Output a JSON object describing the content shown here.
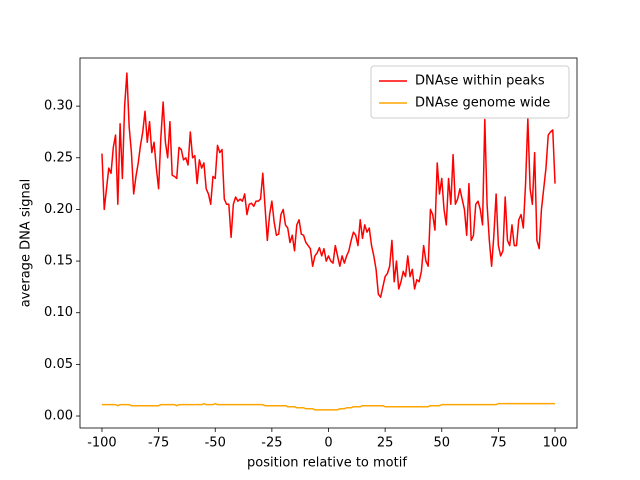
{
  "chart_data": {
    "type": "line",
    "xlabel": "position relative to motif",
    "ylabel": "average DNA signal",
    "legend": "upper right",
    "grid": false,
    "xlim": [
      -109.7,
      109.7
    ],
    "ylim": [
      -0.0116,
      0.3466
    ],
    "xticks": [
      -100,
      -75,
      -50,
      -25,
      0,
      25,
      50,
      75,
      100
    ],
    "yticks": [
      {
        "value": 0,
        "label": "0.00"
      },
      {
        "value": 0.05,
        "label": "0.05"
      },
      {
        "value": 0.1,
        "label": "0.10"
      },
      {
        "value": 0.15,
        "label": "0.15"
      },
      {
        "value": 0.2,
        "label": "0.20"
      },
      {
        "value": 0.25,
        "label": "0.25"
      },
      {
        "value": 0.3,
        "label": "0.30"
      }
    ],
    "x": [
      -100,
      -99,
      -98,
      -97,
      -96,
      -95,
      -94,
      -93,
      -92,
      -91,
      -90,
      -89,
      -88,
      -87,
      -86,
      -85,
      -84,
      -83,
      -82,
      -81,
      -80,
      -79,
      -78,
      -77,
      -76,
      -75,
      -74,
      -73,
      -72,
      -71,
      -70,
      -69,
      -68,
      -67,
      -66,
      -65,
      -64,
      -63,
      -62,
      -61,
      -60,
      -59,
      -58,
      -57,
      -56,
      -55,
      -54,
      -53,
      -52,
      -51,
      -50,
      -49,
      -48,
      -47,
      -46,
      -45,
      -44,
      -43,
      -42,
      -41,
      -40,
      -39,
      -38,
      -37,
      -36,
      -35,
      -34,
      -33,
      -32,
      -31,
      -30,
      -29,
      -28,
      -27,
      -26,
      -25,
      -24,
      -23,
      -22,
      -21,
      -20,
      -19,
      -18,
      -17,
      -16,
      -15,
      -14,
      -13,
      -12,
      -11,
      -10,
      -9,
      -8,
      -7,
      -6,
      -5,
      -4,
      -3,
      -2,
      -1,
      0,
      1,
      2,
      3,
      4,
      5,
      6,
      7,
      8,
      9,
      10,
      11,
      12,
      13,
      14,
      15,
      16,
      17,
      18,
      19,
      20,
      21,
      22,
      23,
      24,
      25,
      26,
      27,
      28,
      29,
      30,
      31,
      32,
      33,
      34,
      35,
      36,
      37,
      38,
      39,
      40,
      41,
      42,
      43,
      44,
      45,
      46,
      47,
      48,
      49,
      50,
      51,
      52,
      53,
      54,
      55,
      56,
      57,
      58,
      59,
      60,
      61,
      62,
      63,
      64,
      65,
      66,
      67,
      68,
      69,
      70,
      71,
      72,
      73,
      74,
      75,
      76,
      77,
      78,
      79,
      80,
      81,
      82,
      83,
      84,
      85,
      86,
      87,
      88,
      89,
      90,
      91,
      92,
      93,
      94,
      95,
      96,
      97,
      98,
      99,
      100
    ],
    "series": [
      {
        "name": "DNAse within peaks",
        "color": "#ff0000",
        "values": [
          0.254,
          0.2,
          0.22,
          0.24,
          0.235,
          0.26,
          0.272,
          0.205,
          0.283,
          0.23,
          0.3,
          0.332,
          0.28,
          0.255,
          0.215,
          0.232,
          0.245,
          0.262,
          0.275,
          0.295,
          0.265,
          0.285,
          0.255,
          0.265,
          0.24,
          0.22,
          0.27,
          0.304,
          0.265,
          0.25,
          0.285,
          0.233,
          0.232,
          0.23,
          0.26,
          0.258,
          0.248,
          0.25,
          0.243,
          0.275,
          0.25,
          0.252,
          0.225,
          0.248,
          0.24,
          0.245,
          0.22,
          0.215,
          0.205,
          0.232,
          0.23,
          0.262,
          0.255,
          0.258,
          0.21,
          0.205,
          0.205,
          0.173,
          0.205,
          0.212,
          0.208,
          0.21,
          0.208,
          0.215,
          0.195,
          0.205,
          0.206,
          0.203,
          0.208,
          0.208,
          0.21,
          0.235,
          0.202,
          0.17,
          0.195,
          0.208,
          0.188,
          0.175,
          0.176,
          0.195,
          0.2,
          0.185,
          0.182,
          0.168,
          0.175,
          0.16,
          0.185,
          0.19,
          0.176,
          0.175,
          0.168,
          0.165,
          0.162,
          0.145,
          0.155,
          0.158,
          0.163,
          0.155,
          0.162,
          0.15,
          0.155,
          0.15,
          0.148,
          0.165,
          0.155,
          0.145,
          0.155,
          0.148,
          0.155,
          0.16,
          0.17,
          0.178,
          0.175,
          0.165,
          0.19,
          0.172,
          0.185,
          0.178,
          0.182,
          0.165,
          0.155,
          0.142,
          0.118,
          0.115,
          0.125,
          0.135,
          0.138,
          0.145,
          0.17,
          0.13,
          0.15,
          0.123,
          0.13,
          0.14,
          0.135,
          0.155,
          0.135,
          0.142,
          0.123,
          0.132,
          0.13,
          0.14,
          0.165,
          0.15,
          0.145,
          0.2,
          0.195,
          0.18,
          0.245,
          0.215,
          0.23,
          0.2,
          0.185,
          0.23,
          0.205,
          0.253,
          0.205,
          0.21,
          0.22,
          0.21,
          0.2,
          0.175,
          0.225,
          0.17,
          0.175,
          0.205,
          0.208,
          0.2,
          0.185,
          0.287,
          0.205,
          0.17,
          0.145,
          0.175,
          0.215,
          0.165,
          0.155,
          0.16,
          0.212,
          0.17,
          0.165,
          0.185,
          0.165,
          0.165,
          0.19,
          0.195,
          0.182,
          0.225,
          0.288,
          0.22,
          0.205,
          0.255,
          0.17,
          0.162,
          0.2,
          0.22,
          0.24,
          0.272,
          0.275,
          0.277,
          0.225
        ]
      },
      {
        "name": "DNAse genome wide",
        "color": "#ffa500",
        "values": [
          0.011,
          0.011,
          0.011,
          0.011,
          0.011,
          0.011,
          0.011,
          0.01,
          0.011,
          0.011,
          0.011,
          0.011,
          0.011,
          0.01,
          0.01,
          0.01,
          0.01,
          0.01,
          0.01,
          0.01,
          0.01,
          0.01,
          0.01,
          0.01,
          0.01,
          0.01,
          0.011,
          0.011,
          0.011,
          0.011,
          0.011,
          0.011,
          0.011,
          0.01,
          0.011,
          0.011,
          0.011,
          0.011,
          0.011,
          0.011,
          0.011,
          0.011,
          0.011,
          0.011,
          0.011,
          0.012,
          0.011,
          0.011,
          0.011,
          0.011,
          0.012,
          0.011,
          0.011,
          0.011,
          0.011,
          0.011,
          0.011,
          0.011,
          0.011,
          0.011,
          0.011,
          0.011,
          0.011,
          0.011,
          0.011,
          0.011,
          0.011,
          0.011,
          0.011,
          0.011,
          0.011,
          0.011,
          0.01,
          0.01,
          0.01,
          0.01,
          0.01,
          0.01,
          0.01,
          0.01,
          0.01,
          0.01,
          0.009,
          0.009,
          0.009,
          0.009,
          0.008,
          0.008,
          0.008,
          0.008,
          0.007,
          0.007,
          0.007,
          0.007,
          0.006,
          0.006,
          0.006,
          0.006,
          0.006,
          0.006,
          0.006,
          0.006,
          0.006,
          0.006,
          0.006,
          0.007,
          0.007,
          0.007,
          0.008,
          0.008,
          0.008,
          0.009,
          0.009,
          0.009,
          0.009,
          0.01,
          0.01,
          0.01,
          0.01,
          0.01,
          0.01,
          0.01,
          0.01,
          0.01,
          0.01,
          0.009,
          0.009,
          0.009,
          0.009,
          0.009,
          0.009,
          0.009,
          0.009,
          0.009,
          0.009,
          0.009,
          0.009,
          0.009,
          0.009,
          0.009,
          0.009,
          0.009,
          0.009,
          0.009,
          0.009,
          0.01,
          0.01,
          0.01,
          0.01,
          0.01,
          0.011,
          0.011,
          0.011,
          0.011,
          0.011,
          0.011,
          0.011,
          0.011,
          0.011,
          0.011,
          0.011,
          0.011,
          0.011,
          0.011,
          0.011,
          0.011,
          0.011,
          0.011,
          0.011,
          0.011,
          0.011,
          0.011,
          0.011,
          0.011,
          0.011,
          0.012,
          0.012,
          0.012,
          0.012,
          0.012,
          0.012,
          0.012,
          0.012,
          0.012,
          0.012,
          0.012,
          0.012,
          0.012,
          0.012,
          0.012,
          0.012,
          0.012,
          0.012,
          0.012,
          0.012,
          0.012,
          0.012,
          0.012,
          0.012,
          0.012,
          0.012
        ]
      }
    ]
  }
}
